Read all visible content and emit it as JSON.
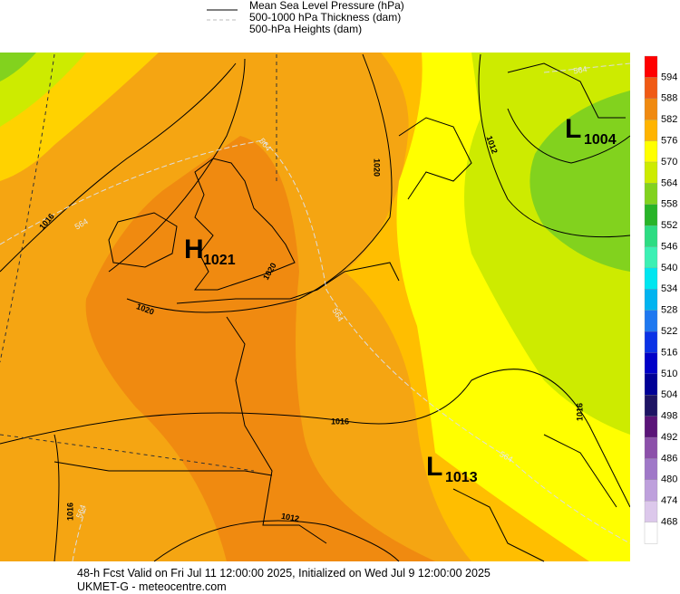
{
  "legend": [
    "Mean Sea Level Pressure (hPa)",
    "500-1000 hPa Thickness (dam)",
    "500-hPa Heights (dam)"
  ],
  "colorbar": {
    "labels": [
      594,
      588,
      582,
      576,
      570,
      564,
      558,
      552,
      546,
      540,
      534,
      528,
      522,
      516,
      510,
      504,
      498,
      492,
      486,
      480,
      474,
      468
    ],
    "colors": [
      "#ff0000",
      "#f05a14",
      "#f08a10",
      "#ffb400",
      "#ffff00",
      "#cdeb00",
      "#82d21e",
      "#28b428",
      "#2ddc82",
      "#3cf0b4",
      "#00e6f0",
      "#00b4f0",
      "#1e78f0",
      "#0a32e6",
      "#0000c8",
      "#000096",
      "#1e1464",
      "#5a1478",
      "#8c50aa",
      "#a078c8",
      "#bea0dc",
      "#dcc8eb",
      "#ffffff"
    ]
  },
  "pressure_centers": [
    {
      "letter": "H",
      "value": "1021"
    },
    {
      "letter": "L",
      "value": "1004"
    },
    {
      "letter": "L",
      "value": "1013"
    }
  ],
  "isobar_labels": [
    "1016",
    "1020",
    "1020",
    "1020",
    "1016",
    "1012",
    "1016",
    "1012",
    "1016"
  ],
  "thickness_labels": [
    "564",
    "564",
    "564",
    "564",
    "564",
    "564"
  ],
  "footer": [
    "48-h Fcst Valid on Fri Jul 11 12:00:00 2025, Initialized on Wed Jul  9 12:00:00 2025",
    "UKMET-G  - meteocentre.com"
  ]
}
